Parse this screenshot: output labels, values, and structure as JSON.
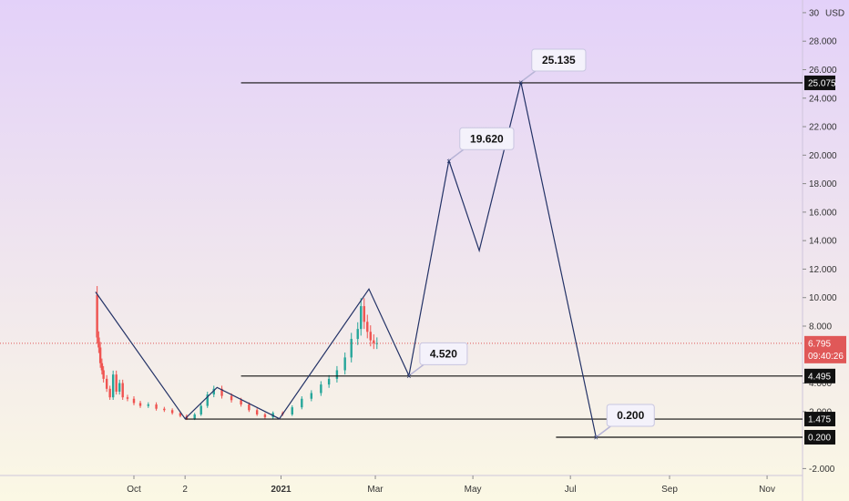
{
  "chart_data": {
    "type": "line",
    "y_unit": "USD",
    "y_ticks": [
      "-2.000",
      "2.000",
      "4.000",
      "8.000",
      "10.000",
      "12.000",
      "14.000",
      "16.000",
      "18.000",
      "20.000",
      "22.000",
      "24.000",
      "26.000",
      "28.000",
      "30"
    ],
    "x_ticks": [
      {
        "label": "Oct",
        "date": "2020-10-01"
      },
      {
        "label": "2",
        "date": "2020-11-02"
      },
      {
        "label": "2021",
        "date": "2021-01-01",
        "bold": true
      },
      {
        "label": "Mar",
        "date": "2021-03-01"
      },
      {
        "label": "May",
        "date": "2021-05-01"
      },
      {
        "label": "Jul",
        "date": "2021-07-01"
      },
      {
        "label": "Sep",
        "date": "2021-09-01"
      },
      {
        "label": "Nov",
        "date": "2021-11-01"
      }
    ],
    "price_series": {
      "name": "",
      "points": [
        [
          "2020-09-07",
          10.2
        ],
        [
          "2020-09-08",
          7.2
        ],
        [
          "2020-09-09",
          6.5
        ],
        [
          "2020-09-10",
          5.4
        ],
        [
          "2020-09-11",
          4.9
        ],
        [
          "2020-09-12",
          4.3
        ],
        [
          "2020-09-14",
          3.6
        ],
        [
          "2020-09-16",
          3.0
        ],
        [
          "2020-09-18",
          4.6
        ],
        [
          "2020-09-20",
          3.4
        ],
        [
          "2020-09-22",
          4.0
        ],
        [
          "2020-09-24",
          3.0
        ],
        [
          "2020-09-27",
          2.9
        ],
        [
          "2020-10-01",
          2.6
        ],
        [
          "2020-10-05",
          2.4
        ],
        [
          "2020-10-10",
          2.5
        ],
        [
          "2020-10-15",
          2.2
        ],
        [
          "2020-10-20",
          2.1
        ],
        [
          "2020-10-25",
          1.9
        ],
        [
          "2020-10-30",
          1.7
        ],
        [
          "2020-11-03",
          1.5
        ],
        [
          "2020-11-08",
          1.8
        ],
        [
          "2020-11-12",
          2.4
        ],
        [
          "2020-11-16",
          3.2
        ],
        [
          "2020-11-20",
          3.6
        ],
        [
          "2020-11-25",
          3.1
        ],
        [
          "2020-12-01",
          2.8
        ],
        [
          "2020-12-07",
          2.5
        ],
        [
          "2020-12-12",
          2.1
        ],
        [
          "2020-12-17",
          1.8
        ],
        [
          "2020-12-22",
          1.6
        ],
        [
          "2020-12-27",
          1.9
        ],
        [
          "2021-01-02",
          1.8
        ],
        [
          "2021-01-08",
          2.3
        ],
        [
          "2021-01-14",
          2.9
        ],
        [
          "2021-01-20",
          3.3
        ],
        [
          "2021-01-26",
          3.9
        ],
        [
          "2021-01-31",
          4.3
        ],
        [
          "2021-02-05",
          4.9
        ],
        [
          "2021-02-10",
          5.8
        ],
        [
          "2021-02-14",
          7.1
        ],
        [
          "2021-02-18",
          7.8
        ],
        [
          "2021-02-20",
          9.4
        ],
        [
          "2021-02-22",
          8.3
        ],
        [
          "2021-02-24",
          7.6
        ],
        [
          "2021-02-26",
          7.0
        ],
        [
          "2021-02-28",
          6.8
        ],
        [
          "2021-03-02",
          6.8
        ]
      ]
    },
    "zigzag_line": [
      [
        "2020-09-07",
        10.4
      ],
      [
        "2020-11-02",
        1.5
      ],
      [
        "2020-11-22",
        3.7
      ],
      [
        "2020-12-31",
        1.5
      ],
      [
        "2021-02-25",
        10.6
      ],
      [
        "2021-03-22",
        4.52
      ],
      [
        "2021-04-16",
        19.62
      ],
      [
        "2021-05-05",
        13.3
      ],
      [
        "2021-05-31",
        25.135
      ],
      [
        "2021-07-17",
        0.2
      ]
    ],
    "horizontal_levels": [
      {
        "value": 25.075,
        "label": "25.075",
        "from": "2020-12-07"
      },
      {
        "value": 4.495,
        "label": "4.495",
        "from": "2020-12-07"
      },
      {
        "value": 1.475,
        "label": "1.475",
        "from": "2020-11-02"
      },
      {
        "value": 0.2,
        "label": "0.200",
        "from": "2021-06-22"
      }
    ],
    "callouts": [
      {
        "text": "4.520",
        "date": "2021-03-22",
        "value": 4.52
      },
      {
        "text": "19.620",
        "date": "2021-04-16",
        "value": 19.62
      },
      {
        "text": "25.135",
        "date": "2021-05-31",
        "value": 25.135
      },
      {
        "text": "0.200",
        "date": "2021-07-17",
        "value": 0.2
      }
    ],
    "current_price": {
      "value": 6.795,
      "label": "6.795",
      "countdown": "09:40:26"
    },
    "colors": {
      "bg_top": "#e3d1f9",
      "bg_bottom": "#fbf8e4",
      "line": "#233266",
      "level": "#111111",
      "current": "#e05858",
      "candle_up": "#26a69a",
      "candle_down": "#ef5350"
    }
  }
}
